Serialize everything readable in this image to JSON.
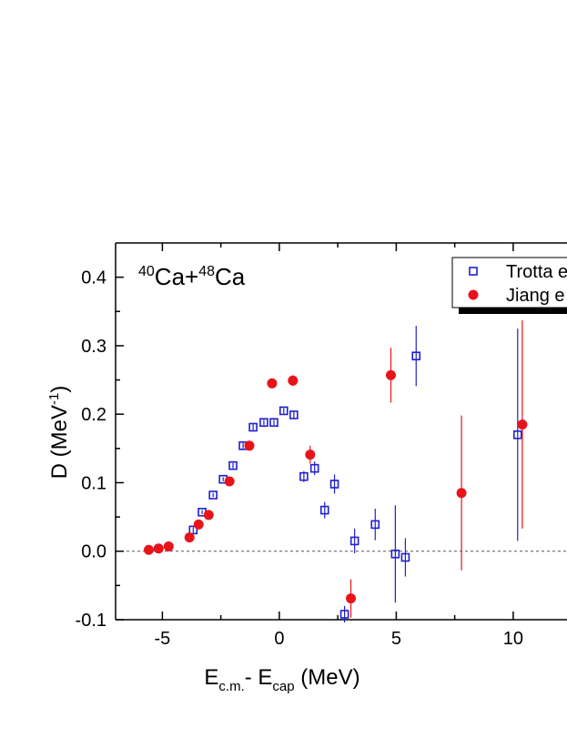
{
  "chart_data": {
    "type": "scatter",
    "annotation": [
      "40",
      "Ca+",
      "48",
      "Ca"
    ],
    "x_label": [
      "E",
      "c.m.",
      "- E",
      "cap",
      " (MeV)"
    ],
    "y_label": [
      "D (MeV",
      "-1",
      ")"
    ],
    "xlim": [
      -7,
      12.3
    ],
    "ylim": [
      -0.1,
      0.45
    ],
    "xticks": [
      -5,
      0,
      5,
      10
    ],
    "x_minor_ticks": [
      -2.5,
      2.5,
      7.5
    ],
    "yticks": [
      -0.1,
      {
        "value": 0,
        "label": "0.0"
      },
      0.1,
      0.2,
      0.3,
      0.4
    ],
    "y_minor_ticks": [
      -0.05,
      0.05,
      0.15,
      0.25,
      0.35
    ],
    "reference_line": 0,
    "legend_position": "upper right",
    "series": [
      {
        "name": "Trotta e",
        "color": "#1f1fd0",
        "marker": "open-square",
        "x": [
          -3.68,
          -3.3,
          -2.83,
          -2.4,
          -1.98,
          -1.55,
          -1.12,
          -0.66,
          -0.23,
          0.19,
          0.62,
          1.05,
          1.51,
          1.94,
          2.36,
          2.79,
          3.22,
          4.1,
          4.96,
          5.39,
          5.85,
          10.19
        ],
        "values": [
          0.031,
          0.057,
          0.082,
          0.105,
          0.125,
          0.154,
          0.181,
          0.188,
          0.188,
          0.205,
          0.199,
          0.109,
          0.121,
          0.06,
          0.098,
          -0.092,
          0.015,
          0.039,
          -0.004,
          -0.009,
          0.285,
          0.17
        ],
        "errors": [
          0.004,
          0.003,
          0.003,
          0.003,
          0.004,
          0.004,
          0.005,
          0.004,
          0.004,
          0.004,
          0.005,
          0.008,
          0.01,
          0.012,
          0.014,
          0.012,
          0.018,
          0.023,
          0.071,
          0.028,
          0.044,
          0.155
        ]
      },
      {
        "name": "Jiang e",
        "color": "#e8141a",
        "marker": "filled-circle",
        "x": [
          -5.58,
          -5.16,
          -4.73,
          -3.84,
          -3.45,
          -3.02,
          -2.13,
          -1.28,
          -0.31,
          0.58,
          1.32,
          3.06,
          4.77,
          7.79,
          10.39
        ],
        "values": [
          0.002,
          0.004,
          0.007,
          0.02,
          0.039,
          0.053,
          0.102,
          0.154,
          0.245,
          0.249,
          0.141,
          -0.069,
          0.257,
          0.085,
          0.185
        ],
        "errors": [
          0.002,
          0.002,
          0.002,
          0.003,
          0.003,
          0.003,
          0.004,
          0.004,
          0.004,
          0.008,
          0.013,
          0.028,
          0.04,
          0.113,
          0.152
        ]
      }
    ]
  }
}
